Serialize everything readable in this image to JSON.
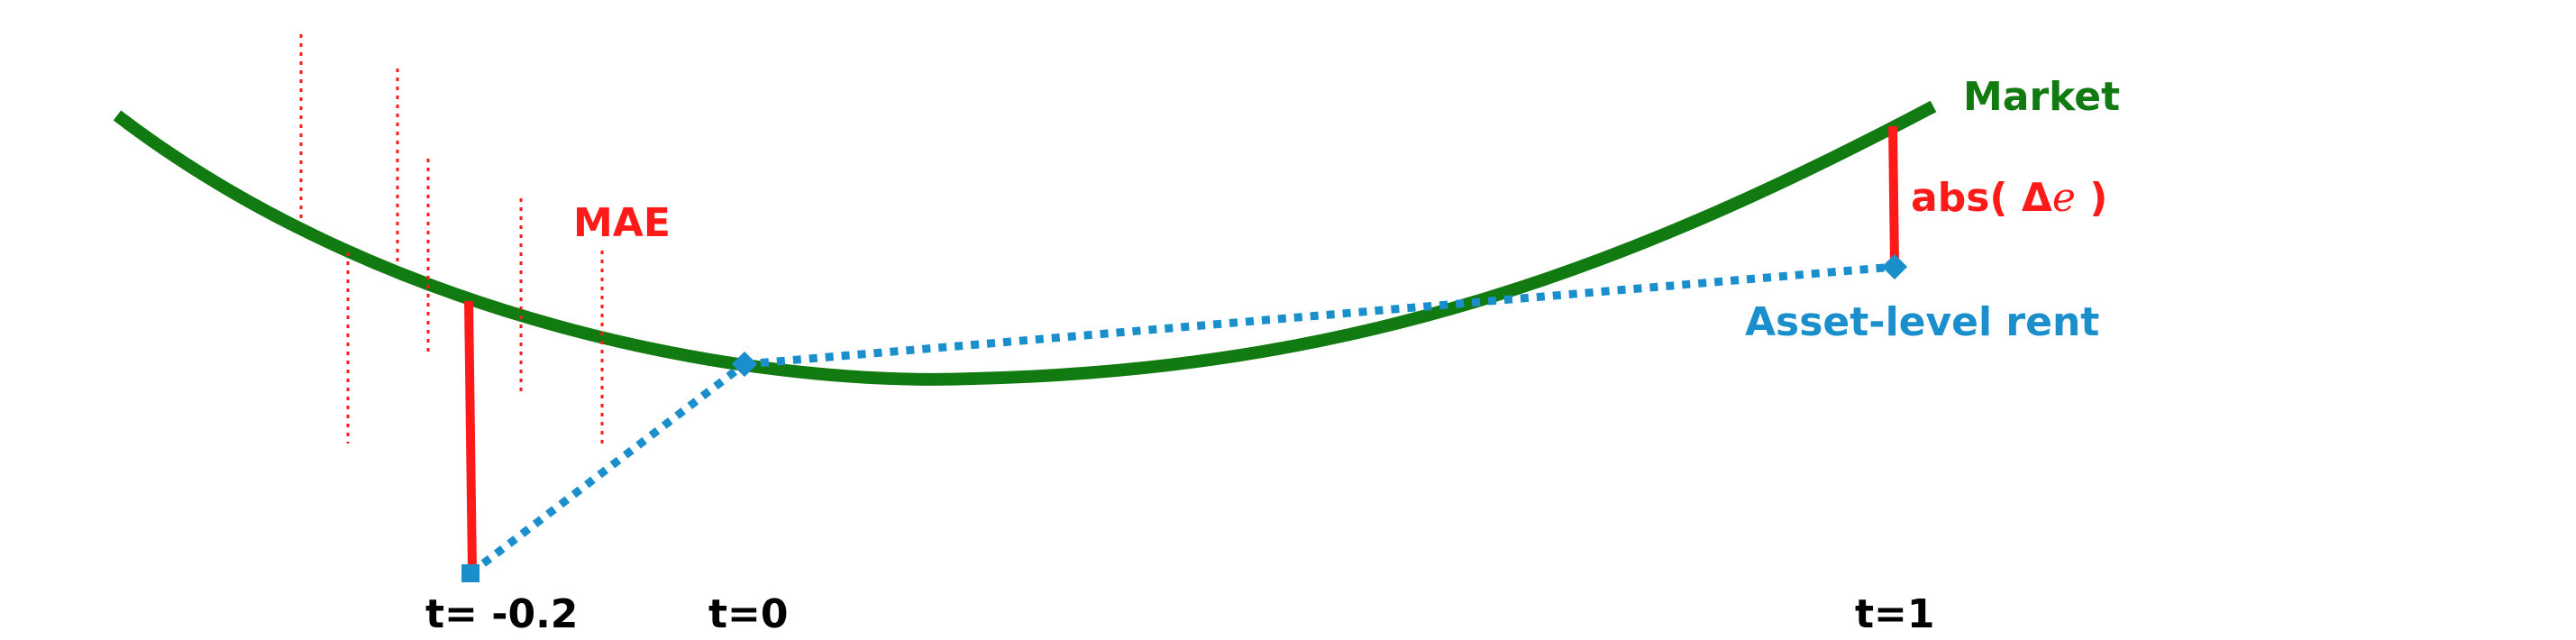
{
  "labels": {
    "market": "Market",
    "mae": "MAE",
    "abs_prefix": "abs( ",
    "abs_delta": "Δ",
    "abs_e": "e",
    "abs_suffix": " )",
    "asset_level_rent": "Asset-level rent",
    "t_minus_02": "t= -0.2",
    "t_0": "t=0",
    "t_1": "t=1"
  },
  "colors": {
    "market_curve": "#117a11",
    "error": "#ff1a1a",
    "asset": "#1a8fcc",
    "axis_text": "#000000"
  },
  "icons": {
    "asset_point_marker": "blue-square-marker"
  }
}
